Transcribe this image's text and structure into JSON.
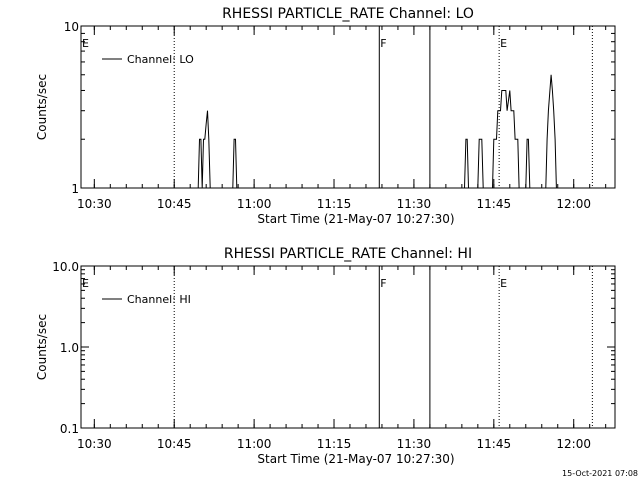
{
  "chart_data": [
    {
      "type": "line",
      "title": "RHESSI PARTICLE_RATE Channel: LO",
      "xlabel": "Start Time (21-May-07 10:27:30)",
      "ylabel": "Counts/sec",
      "xlim": [
        "10:27:30",
        "12:07:45"
      ],
      "yscale": "log",
      "ylim": [
        1,
        10
      ],
      "yticks": [
        "1",
        "10"
      ],
      "xticks": [
        "10:30",
        "10:45",
        "11:00",
        "11:15",
        "11:30",
        "11:45",
        "12:00"
      ],
      "legend": {
        "position": "top-left",
        "entries": [
          "Channel: LO"
        ]
      },
      "event_lines": [
        {
          "time": "10:45:00",
          "style": "dotted",
          "label": ""
        },
        {
          "time": "11:23:30",
          "style": "solid",
          "label": "F"
        },
        {
          "time": "11:33:00",
          "style": "solid",
          "label": ""
        },
        {
          "time": "11:46:00",
          "style": "dotted",
          "label": "E"
        },
        {
          "time": "12:03:30",
          "style": "dotted",
          "label": ""
        }
      ],
      "edge_label": "E",
      "series": [
        {
          "name": "Channel: LO",
          "points": [
            [
              "10:49:30",
              1
            ],
            [
              "10:49:45",
              2
            ],
            [
              "10:50:00",
              2
            ],
            [
              "10:50:15",
              1
            ],
            [
              "10:50:30",
              2
            ],
            [
              "10:50:45",
              2
            ],
            [
              "10:51:00",
              2.5
            ],
            [
              "10:51:15",
              3
            ],
            [
              "10:51:30",
              2
            ],
            [
              "10:51:45",
              1
            ],
            [
              "10:56:00",
              1
            ],
            [
              "10:56:15",
              2
            ],
            [
              "10:56:30",
              2
            ],
            [
              "10:56:45",
              1
            ],
            [
              "11:39:30",
              1
            ],
            [
              "11:39:45",
              2
            ],
            [
              "11:40:00",
              2
            ],
            [
              "11:40:15",
              1
            ],
            [
              "11:42:00",
              1
            ],
            [
              "11:42:15",
              2
            ],
            [
              "11:42:30",
              2
            ],
            [
              "11:42:45",
              2
            ],
            [
              "11:43:00",
              1
            ],
            [
              "11:44:45",
              1
            ],
            [
              "11:45:00",
              2
            ],
            [
              "11:45:30",
              2
            ],
            [
              "11:45:45",
              3
            ],
            [
              "11:46:15",
              3
            ],
            [
              "11:46:30",
              4
            ],
            [
              "11:47:15",
              4
            ],
            [
              "11:47:30",
              3
            ],
            [
              "11:48:00",
              4
            ],
            [
              "11:48:15",
              3
            ],
            [
              "11:48:45",
              3
            ],
            [
              "11:49:00",
              2
            ],
            [
              "11:49:30",
              2
            ],
            [
              "11:49:45",
              1
            ],
            [
              "11:51:00",
              1
            ],
            [
              "11:51:15",
              2
            ],
            [
              "11:51:30",
              2
            ],
            [
              "11:51:45",
              1
            ],
            [
              "11:54:45",
              1
            ],
            [
              "11:55:00",
              2
            ],
            [
              "11:55:15",
              3
            ],
            [
              "11:55:45",
              5
            ],
            [
              "11:56:00",
              4
            ],
            [
              "11:56:15",
              3
            ],
            [
              "11:56:30",
              2
            ],
            [
              "11:56:45",
              1
            ]
          ]
        }
      ]
    },
    {
      "type": "line",
      "title": "RHESSI PARTICLE_RATE Channel: HI",
      "xlabel": "Start Time (21-May-07 10:27:30)",
      "ylabel": "Counts/sec",
      "xlim": [
        "10:27:30",
        "12:07:45"
      ],
      "yscale": "log",
      "ylim": [
        0.1,
        10
      ],
      "yticks": [
        "0.1",
        "1.0",
        "10.0"
      ],
      "xticks": [
        "10:30",
        "10:45",
        "11:00",
        "11:15",
        "11:30",
        "11:45",
        "12:00"
      ],
      "legend": {
        "position": "top-left",
        "entries": [
          "Channel: HI"
        ]
      },
      "event_lines": [
        {
          "time": "10:45:00",
          "style": "dotted",
          "label": ""
        },
        {
          "time": "11:23:30",
          "style": "solid",
          "label": "F"
        },
        {
          "time": "11:33:00",
          "style": "solid",
          "label": ""
        },
        {
          "time": "11:46:00",
          "style": "dotted",
          "label": "E"
        },
        {
          "time": "12:03:30",
          "style": "dotted",
          "label": ""
        }
      ],
      "edge_label": "E",
      "series": [
        {
          "name": "Channel: HI",
          "points": []
        }
      ]
    }
  ],
  "footer": {
    "timestamp": "15-Oct-2021 07:08"
  }
}
